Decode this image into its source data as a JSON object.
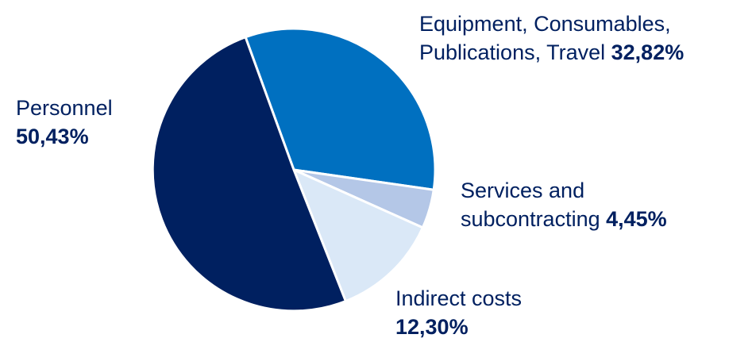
{
  "chart_data": {
    "type": "pie",
    "title": "",
    "slices": [
      {
        "line1": "Equipment, Consumables,",
        "line2": "Publications, Travel",
        "value_label": "32,82%",
        "value": 32.82,
        "color": "#0070C0"
      },
      {
        "line1": "Services and",
        "line2": "subcontracting",
        "value_label": "4,45%",
        "value": 4.45,
        "color": "#B4C7E7"
      },
      {
        "line1": "Indirect costs",
        "line2": "",
        "value_label": "12,30%",
        "value": 12.3,
        "color": "#DAE8F7"
      },
      {
        "line1": "Personnel",
        "line2": "",
        "value_label": "50,43%",
        "value": 50.43,
        "color": "#002060"
      }
    ],
    "start_angle_deg": -20,
    "direction": "clockwise",
    "slice_separator": "#ffffff"
  }
}
